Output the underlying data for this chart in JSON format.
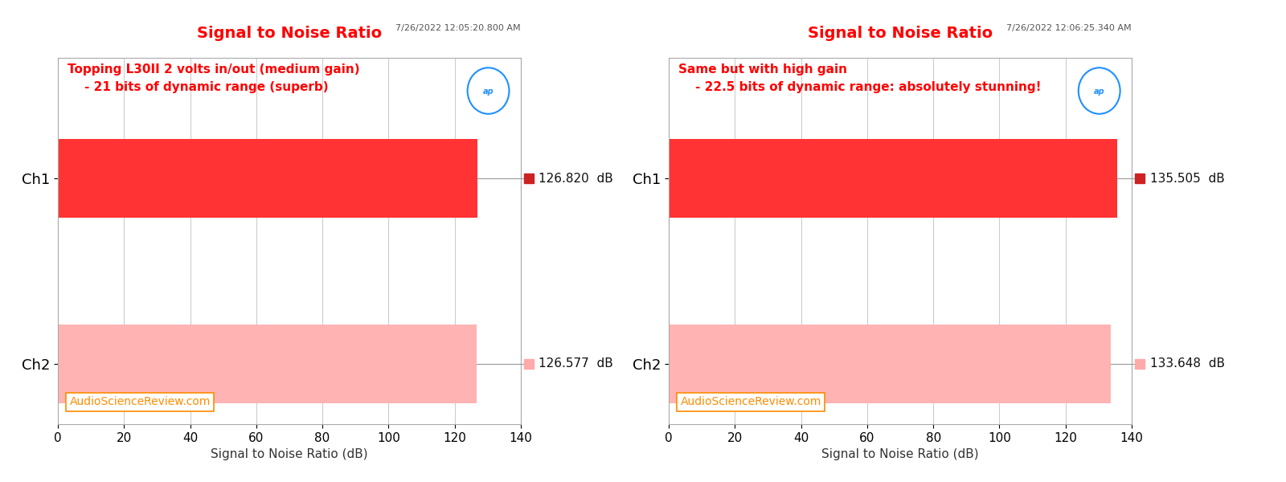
{
  "panels": [
    {
      "title": "Signal to Noise Ratio",
      "timestamp": "7/26/2022 12:05:20.800 AM",
      "annotation_line1": "Topping L30II 2 volts in/out (medium gain)",
      "annotation_line2": "    - 21 bits of dynamic range (superb)",
      "ch1_value": 126.82,
      "ch2_value": 126.577,
      "xlim": [
        0,
        140
      ],
      "xticks": [
        0,
        20,
        40,
        60,
        80,
        100,
        120,
        140
      ]
    },
    {
      "title": "Signal to Noise Ratio",
      "timestamp": "7/26/2022 12:06:25.340 AM",
      "annotation_line1": "Same but with high gain",
      "annotation_line2": "    - 22.5 bits of dynamic range: absolutely stunning!",
      "ch1_value": 135.505,
      "ch2_value": 133.648,
      "xlim": [
        0,
        140
      ],
      "xticks": [
        0,
        20,
        40,
        60,
        80,
        100,
        120,
        140
      ]
    }
  ],
  "ch1_color": "#FF3333",
  "ch2_color": "#FFB3B3",
  "ch1_marker_color": "#CC2222",
  "ch2_marker_color": "#FFAAAA",
  "title_color": "#FF0000",
  "annotation_color": "#FF0000",
  "timestamp_color": "#555555",
  "xlabel": "Signal to Noise Ratio (dB)",
  "ylabel_ch1": "Ch1",
  "ylabel_ch2": "Ch2",
  "watermark_text": "AudioScienceReview.com",
  "watermark_color": "#FF8C00",
  "bg_color": "#FFFFFF",
  "grid_color": "#CCCCCC",
  "ap_logo_color": "#1E90FF",
  "bar_ch1_y": 2,
  "bar_ch2_y": 0,
  "bar_height": 0.85,
  "ylim_bottom": -0.65,
  "ylim_top": 3.3
}
